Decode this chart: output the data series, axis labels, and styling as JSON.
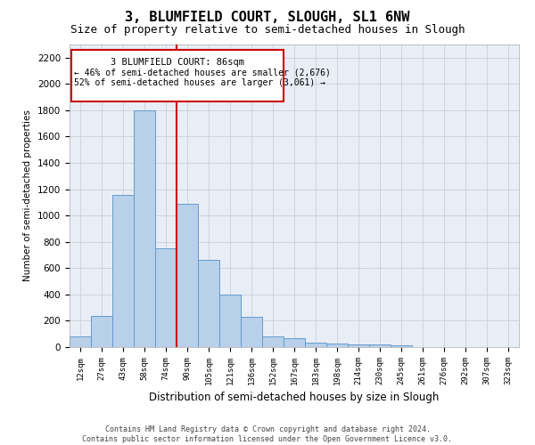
{
  "title": "3, BLUMFIELD COURT, SLOUGH, SL1 6NW",
  "subtitle": "Size of property relative to semi-detached houses in Slough",
  "xlabel": "Distribution of semi-detached houses by size in Slough",
  "ylabel": "Number of semi-detached properties",
  "footer_line1": "Contains HM Land Registry data © Crown copyright and database right 2024.",
  "footer_line2": "Contains public sector information licensed under the Open Government Licence v3.0.",
  "bar_labels": [
    "12sqm",
    "27sqm",
    "43sqm",
    "58sqm",
    "74sqm",
    "90sqm",
    "105sqm",
    "121sqm",
    "136sqm",
    "152sqm",
    "167sqm",
    "183sqm",
    "198sqm",
    "214sqm",
    "230sqm",
    "245sqm",
    "261sqm",
    "276sqm",
    "292sqm",
    "307sqm",
    "323sqm"
  ],
  "bar_values": [
    80,
    240,
    1160,
    1800,
    750,
    1090,
    665,
    400,
    230,
    80,
    65,
    35,
    30,
    20,
    20,
    15,
    0,
    0,
    0,
    0,
    0
  ],
  "bar_color": "#b8d0ea",
  "bar_edge_color": "#6699cc",
  "property_line_x": 4.5,
  "annotation_text_line1": "3 BLUMFIELD COURT: 86sqm",
  "annotation_text_line2": "← 46% of semi-detached houses are smaller (2,676)",
  "annotation_text_line3": "52% of semi-detached houses are larger (3,061) →",
  "ylim": [
    0,
    2300
  ],
  "yticks": [
    0,
    200,
    400,
    600,
    800,
    1000,
    1200,
    1400,
    1600,
    1800,
    2000,
    2200
  ],
  "red_line_color": "#cc0000",
  "annotation_box_color": "#ffffff",
  "annotation_box_edge": "#cc0000",
  "grid_color": "#c8d0dc",
  "bg_color": "#e8eef6",
  "title_fontsize": 11,
  "subtitle_fontsize": 9
}
